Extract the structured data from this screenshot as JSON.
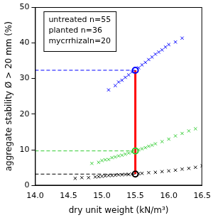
{
  "chart_data": {
    "type": "scatter",
    "x_label": "dry unit weight (kN/m³)",
    "y_label": "aggregate stability Ø > 20 mm (%)",
    "xlim": [
      14.0,
      16.5
    ],
    "xticks": [
      {
        "value": 14.0,
        "label": "14.0"
      },
      14.5,
      {
        "value": 15.0,
        "label": "15.0"
      },
      15.5,
      {
        "value": 16.0,
        "label": "16.0"
      },
      16.5
    ],
    "ylim": [
      0,
      50
    ],
    "yticks": [
      0,
      10,
      20,
      30,
      40,
      50
    ],
    "grid": false,
    "legend": "upper left",
    "marker": "x",
    "reference_x": 15.5,
    "series": [
      {
        "name": "untreated n=55",
        "color": "#000000",
        "reference_y": 3.2,
        "x": [
          14.6,
          14.7,
          14.8,
          14.9,
          14.95,
          15.0,
          15.05,
          15.1,
          15.15,
          15.2,
          15.25,
          15.3,
          15.35,
          15.4,
          15.45,
          15.55,
          15.6,
          15.7,
          15.8,
          15.9,
          16.0,
          16.1,
          16.2,
          16.3,
          16.4,
          16.5
        ],
        "values": [
          2.0,
          2.2,
          2.2,
          2.4,
          2.5,
          2.6,
          2.7,
          2.8,
          2.8,
          2.9,
          3.0,
          3.0,
          3.1,
          3.1,
          3.2,
          3.3,
          3.4,
          3.6,
          3.7,
          3.9,
          4.1,
          4.3,
          4.6,
          4.8,
          5.1,
          5.5
        ]
      },
      {
        "name": "planted n=36",
        "color": "#33cc33",
        "reference_y": 9.7,
        "x": [
          14.85,
          14.95,
          15.0,
          15.05,
          15.1,
          15.15,
          15.2,
          15.25,
          15.3,
          15.35,
          15.4,
          15.45,
          15.55,
          15.6,
          15.65,
          15.7,
          15.75,
          15.8,
          15.9,
          16.0,
          16.1,
          16.2,
          16.3,
          16.4
        ],
        "values": [
          6.2,
          6.5,
          7.0,
          7.2,
          7.3,
          7.8,
          8.0,
          8.3,
          8.5,
          8.8,
          9.1,
          9.4,
          10.0,
          10.3,
          10.6,
          11.0,
          11.3,
          11.7,
          12.3,
          13.0,
          13.9,
          14.6,
          15.3,
          15.9
        ]
      },
      {
        "name": "mycrrhizaln=20",
        "color": "#0000ff",
        "reference_y": 32.3,
        "x": [
          15.1,
          15.2,
          15.25,
          15.3,
          15.35,
          15.4,
          15.45,
          15.55,
          15.6,
          15.65,
          15.7,
          15.75,
          15.8,
          15.85,
          15.9,
          15.95,
          16.0,
          16.1,
          16.2
        ],
        "values": [
          26.8,
          28.0,
          29.0,
          29.5,
          30.3,
          31.0,
          31.8,
          33.0,
          33.8,
          34.5,
          35.3,
          36.0,
          36.8,
          37.4,
          38.0,
          38.8,
          39.5,
          40.2,
          41.3
        ]
      }
    ]
  }
}
